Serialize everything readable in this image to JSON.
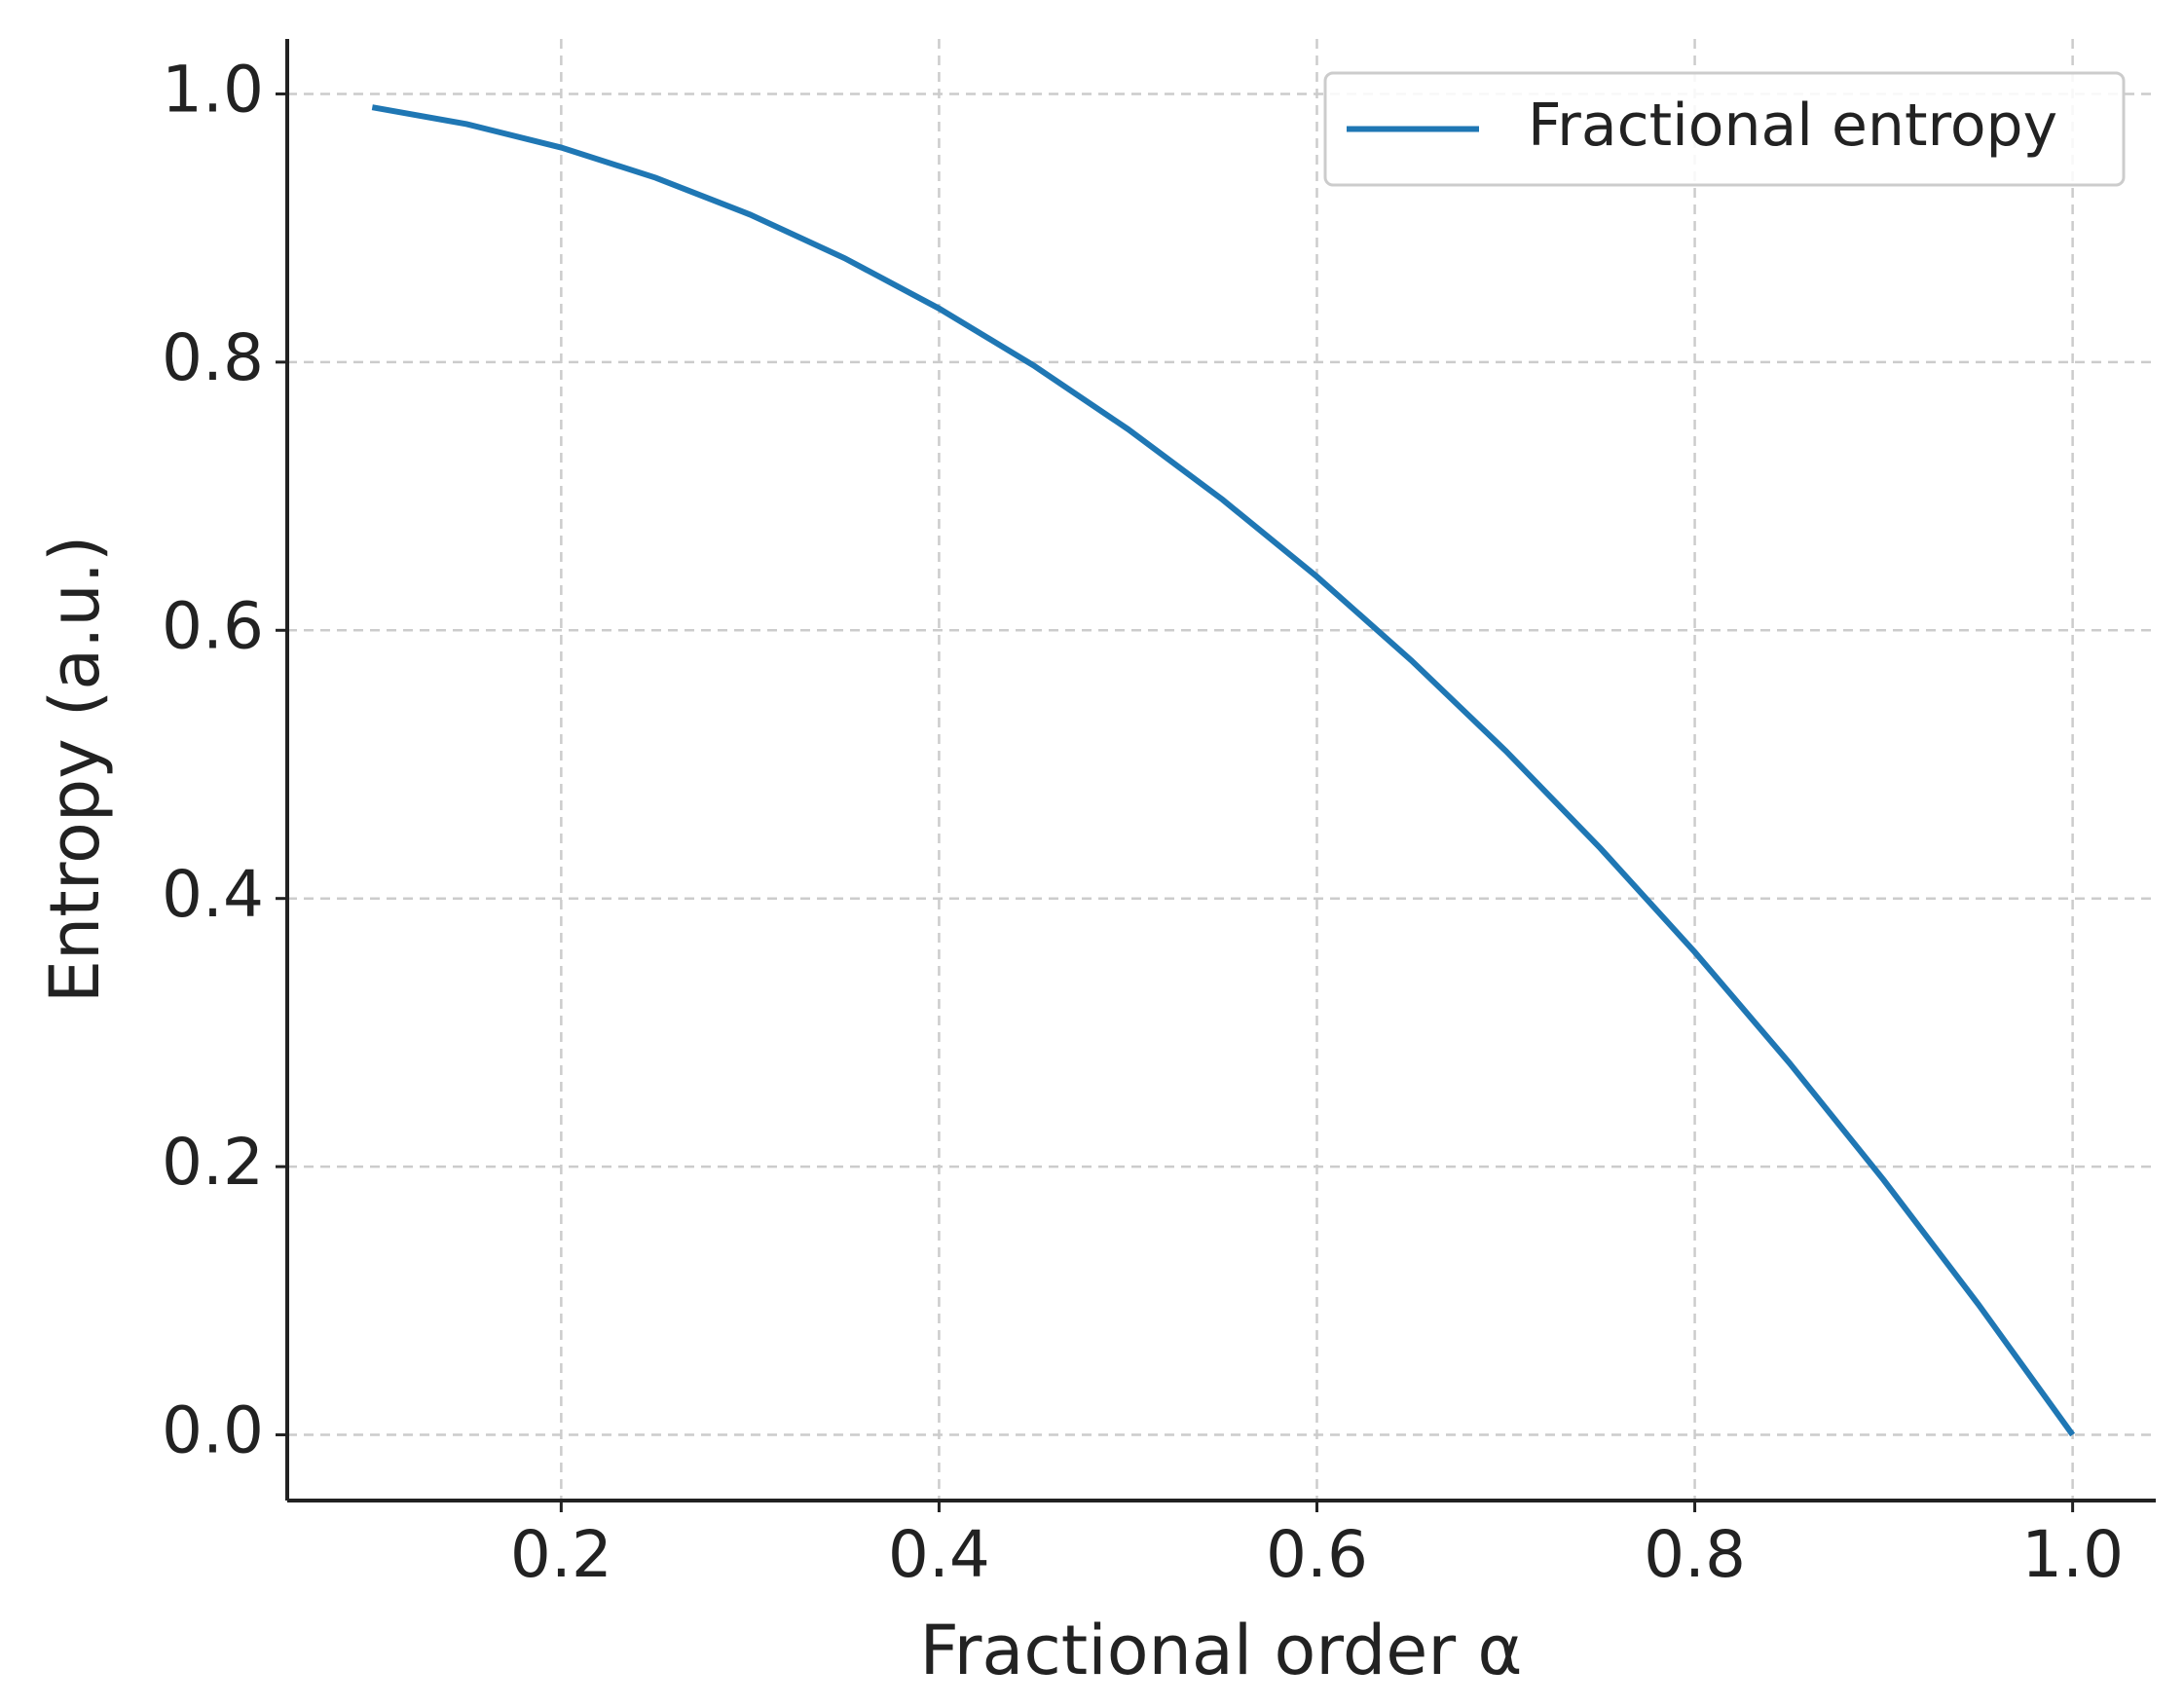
{
  "chart_data": {
    "type": "line",
    "x_label": "Fractional order α",
    "y_label": "Entropy (a.u.)",
    "x": [
      0.1,
      0.15,
      0.2,
      0.25,
      0.3,
      0.35,
      0.4,
      0.45,
      0.5,
      0.55,
      0.6,
      0.65,
      0.7,
      0.75,
      0.8,
      0.85,
      0.9,
      0.95,
      1.0
    ],
    "series": [
      {
        "name": "Fractional entropy",
        "color": "#1f77b4",
        "values": [
          0.99,
          0.9775,
          0.96,
          0.9375,
          0.91,
          0.8775,
          0.84,
          0.7975,
          0.75,
          0.6975,
          0.64,
          0.5775,
          0.51,
          0.4375,
          0.36,
          0.2775,
          0.19,
          0.0975,
          0
        ]
      }
    ],
    "xlim": [
      0.055,
      1.044
    ],
    "ylim": [
      -0.049,
      1.041
    ],
    "xticks": [
      0.2,
      0.4,
      0.6,
      0.8,
      {
        "value": 1,
        "label": "1.0"
      }
    ],
    "yticks": [
      {
        "value": 0,
        "label": "0.0"
      },
      0.2,
      0.4,
      0.6,
      0.8,
      {
        "value": 1,
        "label": "1.0"
      }
    ],
    "grid": true,
    "legend": "upper right"
  }
}
